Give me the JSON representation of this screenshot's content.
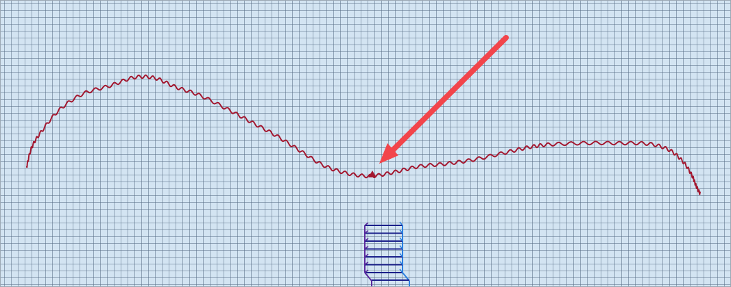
{
  "canvas": {
    "background": "#d3e4f2",
    "grid_color": "#5a6e87",
    "grid": true
  },
  "colors": {
    "wavy_line": "#a3172f",
    "marker": "#a3172f",
    "arrow": "#f2454b",
    "stair_dark": "#1a1f8a",
    "stair_purple": "#5b2a9e",
    "stair_light": "#2a7fe0"
  },
  "annotations": {
    "arrow_icon": "arrow-pointing-down-left",
    "marker_icon": "triangle-marker"
  }
}
